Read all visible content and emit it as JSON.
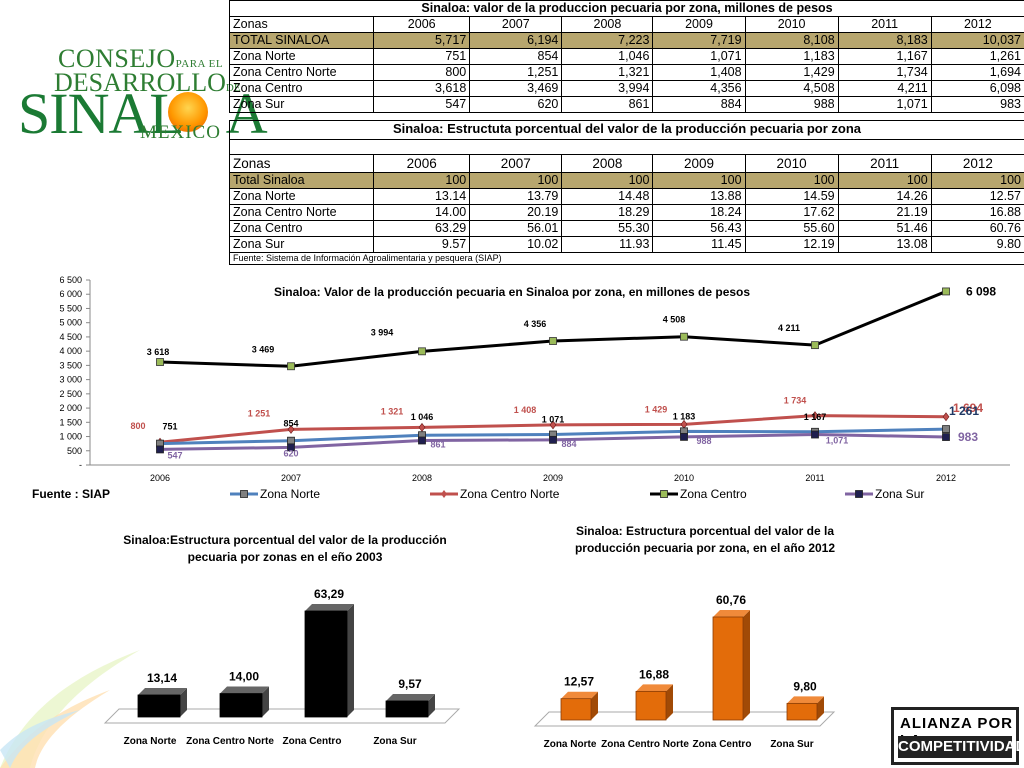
{
  "logo": {
    "word1": "CONSEJO",
    "word1_small": "PARA EL",
    "word2": "DESARROLLO",
    "word2_small": "DE",
    "word3a": "SINAL",
    "word3b": "A",
    "word4": "MEXICO"
  },
  "table1": {
    "title": "Sinaloa: valor de la produccion pecuaria por zona,  millones de pesos",
    "headers": [
      "Zonas",
      "2006",
      "2007",
      "2008",
      "2009",
      "2010",
      "2011",
      "2012"
    ],
    "rows": [
      [
        "TOTAL SINALOA",
        "5,717",
        "6,194",
        "7,223",
        "7,719",
        "8,108",
        "8,183",
        "10,037"
      ],
      [
        "Zona Norte",
        "751",
        "854",
        "1,046",
        "1,071",
        "1,183",
        "1,167",
        "1,261"
      ],
      [
        "Zona Centro Norte",
        "800",
        "1,251",
        "1,321",
        "1,408",
        "1,429",
        "1,734",
        "1,694"
      ],
      [
        "Zona Centro",
        "3,618",
        "3,469",
        "3,994",
        "4,356",
        "4,508",
        "4,211",
        "6,098"
      ],
      [
        "Zona Sur",
        "547",
        "620",
        "861",
        "884",
        "988",
        "1,071",
        "983"
      ]
    ]
  },
  "table2": {
    "title": "Sinaloa: Estructuta porcentual del valor de la producción pecuaria por zona",
    "headers": [
      "Zonas",
      "2006",
      "2007",
      "2008",
      "2009",
      "2010",
      "2011",
      "2012"
    ],
    "rows": [
      [
        "Total Sinaloa",
        "100",
        "100",
        "100",
        "100",
        "100",
        "100",
        "100"
      ],
      [
        "Zona Norte",
        "13.14",
        "13.79",
        "14.48",
        "13.88",
        "14.59",
        "14.26",
        "12.57"
      ],
      [
        "Zona Centro Norte",
        "14.00",
        "20.19",
        "18.29",
        "18.24",
        "17.62",
        "21.19",
        "16.88"
      ],
      [
        "Zona Centro",
        "63.29",
        "56.01",
        "55.30",
        "56.43",
        "55.60",
        "51.46",
        "60.76"
      ],
      [
        "Zona Sur",
        "9.57",
        "10.02",
        "11.93",
        "11.45",
        "12.19",
        "13.08",
        "9.80"
      ]
    ],
    "source": "Fuente: Sistema de Información Agroalimentaria y pesquera (SIAP)"
  },
  "fuente": "Fuente : SIAP",
  "alianza": {
    "line1": "ALIANZA POR LA",
    "line2": "COMPETITIVIDAD"
  },
  "chart_data": [
    {
      "type": "line",
      "title": "Sinaloa: Valor de la producción pecuaria en Sinaloa por zona, en millones de pesos",
      "x": [
        "2006",
        "2007",
        "2008",
        "2009",
        "2010",
        "2011",
        "2012"
      ],
      "ylim": [
        0,
        6500
      ],
      "yticks": [
        "-",
        "500",
        "1 000",
        "1 500",
        "2 000",
        "2 500",
        "3 000",
        "3 500",
        "4 000",
        "4 500",
        "5 000",
        "5 500",
        "6 000",
        "6 500"
      ],
      "legend_position": "bottom",
      "series": [
        {
          "name": "Zona Norte",
          "color": "#4f81bd",
          "marker": "#808080",
          "values": [
            751,
            854,
            1046,
            1071,
            1183,
            1167,
            1261
          ],
          "labels": [
            "751",
            "854",
            "1 046",
            "1 071",
            "1 183",
            "1 167",
            "1 261"
          ]
        },
        {
          "name": "Zona Centro Norte",
          "color": "#c0504d",
          "marker": "#c0504d",
          "values": [
            800,
            1251,
            1321,
            1408,
            1429,
            1734,
            1694
          ],
          "labels": [
            "800",
            "1 251",
            "1 321",
            "1 408",
            "1 429",
            "1 734",
            "1 694"
          ]
        },
        {
          "name": "Zona Centro",
          "color": "#000000",
          "marker": "#9bbb59",
          "values": [
            3618,
            3469,
            3994,
            4356,
            4508,
            4211,
            6098
          ],
          "labels": [
            "3 618",
            "3 469",
            "3 994",
            "4 356",
            "4 508",
            "4 211",
            "6 098"
          ]
        },
        {
          "name": "Zona Sur",
          "color": "#8064a2",
          "marker": "#1f1f4f",
          "values": [
            547,
            620,
            861,
            884,
            988,
            1071,
            983
          ],
          "labels": [
            "547",
            "620",
            "861",
            "884",
            "988",
            "1,071",
            "983"
          ]
        }
      ]
    },
    {
      "type": "bar",
      "title": "Sinaloa:Estructura porcentual del valor de la producción pecuaria por  zonas en el eño 2003",
      "categories": [
        "Zona Norte",
        "Zona Centro Norte",
        "Zona Centro",
        "Zona Sur"
      ],
      "values": [
        13.14,
        14.0,
        63.29,
        9.57
      ],
      "labels": [
        "13,14",
        "14,00",
        "63,29",
        "9,57"
      ],
      "color": "#000000"
    },
    {
      "type": "bar",
      "title": "Sinaloa: Estructura porcentual del valor de la producción pecuaria por zona, en el año 2012",
      "categories": [
        "Zona Norte",
        "Zona Centro Norte",
        "Zona Centro",
        "Zona Sur"
      ],
      "values": [
        12.57,
        16.88,
        60.76,
        9.8
      ],
      "labels": [
        "12,57",
        "16,88",
        "60,76",
        "9,80"
      ],
      "color": "#e36c0a"
    }
  ]
}
